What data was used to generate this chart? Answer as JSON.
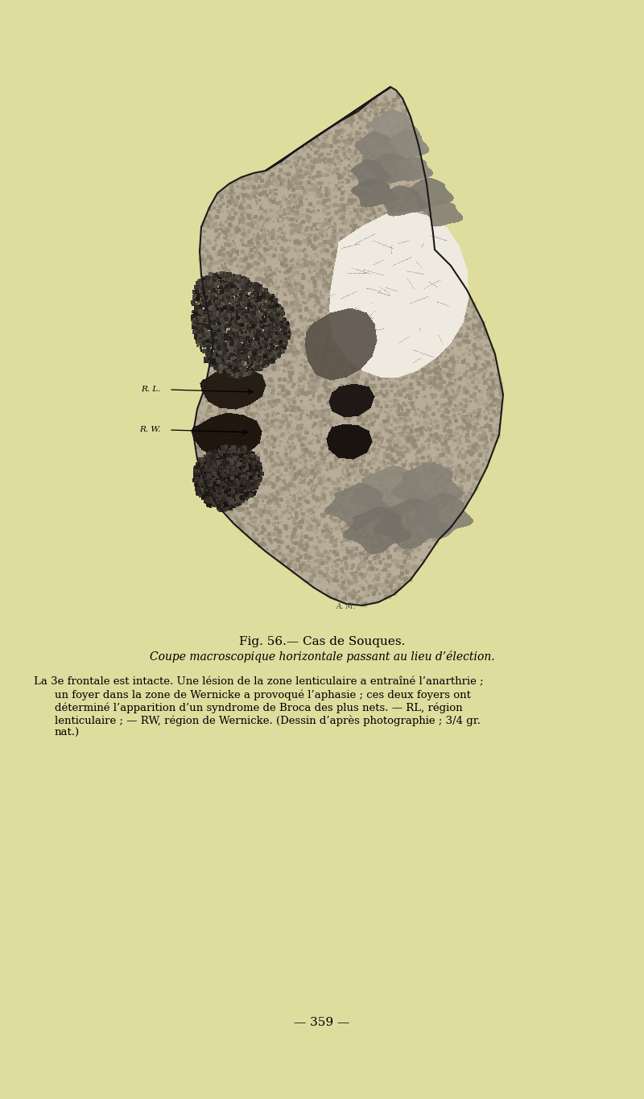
{
  "background_color": "#dedd9e",
  "bg_rgb": [
    0.871,
    0.867,
    0.62
  ],
  "fig_width": 8.0,
  "fig_height": 13.65,
  "dpi": 100,
  "title_line1": "Fig. 56.— Cas de Souques.",
  "title_line2": "Coupe macroscopique horizontale passant au lieu d’élection.",
  "caption_line1": "La 3e frontale est intacte. Une lésion de la zone lenticulaire a entraîné l’anarthrie ;",
  "caption_line2": "un foyer dans la zone de Wernicke a provoqué l’aphasie ; ces deux foyers ont",
  "caption_line3": "déterminé l’apparition d’un syndrome de Broca des plus nets. — RL, région",
  "caption_line4": "lenticulaire ; — RW, région de Wernicke. (Dessin d’après photographie ; 3/4 gr.",
  "caption_line5": "nat.)",
  "page_number": "— 359 —",
  "label_RL": "R. L.",
  "label_RW": "R. W.",
  "title_fontsize": 11,
  "subtitle_fontsize": 10,
  "caption_fontsize": 9.5,
  "page_fontsize": 11
}
